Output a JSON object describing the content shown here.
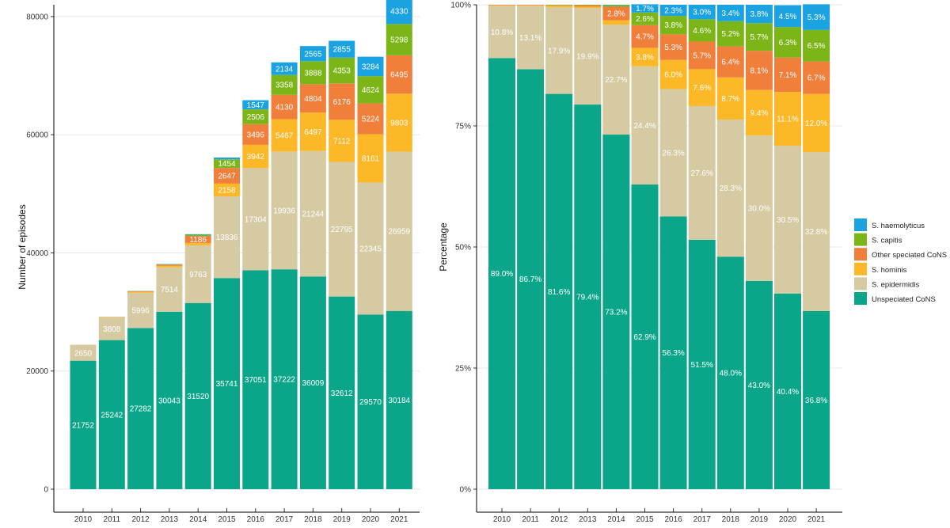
{
  "chart_data": [
    {
      "type": "stacked-bar",
      "title": "",
      "xlabel": "",
      "ylabel": "Number of episodes",
      "ylim": [
        0,
        82000
      ],
      "yticks": [
        0,
        20000,
        40000,
        60000,
        80000
      ],
      "ytick_labels": [
        "0",
        "20000",
        "40000",
        "60000",
        "80000"
      ],
      "grid": "horizontal",
      "categories": [
        "2010",
        "2011",
        "2012",
        "2013",
        "2014",
        "2015",
        "2016",
        "2017",
        "2018",
        "2019",
        "2020",
        "2021"
      ],
      "series": [
        {
          "name": "Unspeciated CoNS",
          "values": [
            21752,
            25242,
            27282,
            30043,
            31520,
            35741,
            37051,
            37222,
            36009,
            32612,
            29570,
            30184
          ],
          "labels": [
            "21752",
            "25242",
            "27282",
            "30043",
            "31520",
            "35741",
            "37051",
            "37222",
            "36009",
            "32612",
            "29570",
            "30184"
          ]
        },
        {
          "name": "S. epidermidis",
          "values": [
            2650,
            3808,
            5996,
            7514,
            9763,
            13836,
            17304,
            19936,
            21244,
            22795,
            22345,
            26959
          ],
          "labels": [
            "2650",
            "3808",
            "5996",
            "7514",
            "9763",
            "13836",
            "17304",
            "19936",
            "21244",
            "22795",
            "22345",
            "26959"
          ]
        },
        {
          "name": "S. hominis",
          "values": [
            30,
            60,
            150,
            250,
            400,
            2158,
            3942,
            5467,
            6497,
            7112,
            8161,
            9803
          ],
          "labels": [
            "",
            "",
            "",
            "",
            "",
            "2158",
            "3942",
            "5467",
            "6497",
            "7112",
            "8161",
            "9803"
          ]
        },
        {
          "name": "Other speciated CoNS",
          "values": [
            20,
            40,
            80,
            200,
            1186,
            2647,
            3496,
            4130,
            4804,
            6176,
            5224,
            6495
          ],
          "labels": [
            "",
            "",
            "",
            "",
            "1186",
            "2647",
            "3496",
            "4130",
            "4804",
            "6176",
            "5224",
            "6495"
          ]
        },
        {
          "name": "S. capitis",
          "values": [
            0,
            20,
            40,
            80,
            200,
            1454,
            2506,
            3358,
            3888,
            4353,
            4624,
            5298
          ],
          "labels": [
            "",
            "",
            "",
            "",
            "",
            "1454",
            "2506",
            "3358",
            "3888",
            "4353",
            "4624",
            "5298"
          ]
        },
        {
          "name": "S. haemolyticus",
          "values": [
            0,
            0,
            20,
            40,
            100,
            300,
            1547,
            2134,
            2565,
            2855,
            3284,
            4330
          ],
          "labels": [
            "",
            "",
            "",
            "",
            "",
            "",
            "1547",
            "2134",
            "2565",
            "2855",
            "3284",
            "4330"
          ]
        }
      ]
    },
    {
      "type": "stacked-bar",
      "title": "",
      "xlabel": "",
      "ylabel": "Percentage",
      "ylim": [
        0,
        100
      ],
      "yticks": [
        0,
        25,
        50,
        75,
        100
      ],
      "ytick_labels": [
        "0%",
        "25%",
        "50%",
        "75%",
        "100%"
      ],
      "grid": "horizontal",
      "categories": [
        "2010",
        "2011",
        "2012",
        "2013",
        "2014",
        "2015",
        "2016",
        "2017",
        "2018",
        "2019",
        "2020",
        "2021"
      ],
      "series": [
        {
          "name": "Unspeciated CoNS",
          "values": [
            89.0,
            86.7,
            81.6,
            79.4,
            73.2,
            62.9,
            56.3,
            51.5,
            48.0,
            43.0,
            40.4,
            36.8
          ],
          "labels": [
            "89.0%",
            "86.7%",
            "81.6%",
            "79.4%",
            "73.2%",
            "62.9%",
            "56.3%",
            "51.5%",
            "48.0%",
            "43.0%",
            "40.4%",
            "36.8%"
          ]
        },
        {
          "name": "S. epidermidis",
          "values": [
            10.8,
            13.1,
            17.9,
            19.9,
            22.7,
            24.4,
            26.3,
            27.6,
            28.3,
            30.0,
            30.5,
            32.8
          ],
          "labels": [
            "10.8%",
            "13.1%",
            "17.9%",
            "19.9%",
            "22.7%",
            "24.4%",
            "26.3%",
            "27.6%",
            "28.3%",
            "30.0%",
            "30.5%",
            "32.8%"
          ]
        },
        {
          "name": "S. hominis",
          "values": [
            0.1,
            0.1,
            0.3,
            0.3,
            0.9,
            3.8,
            6.0,
            7.6,
            8.7,
            9.4,
            11.1,
            12.0
          ],
          "labels": [
            "",
            "",
            "",
            "",
            "",
            "3.8%",
            "6.0%",
            "7.6%",
            "8.7%",
            "9.4%",
            "11.1%",
            "12.0%"
          ]
        },
        {
          "name": "Other speciated CoNS",
          "values": [
            0.1,
            0.1,
            0.1,
            0.3,
            2.8,
            4.7,
            5.3,
            5.7,
            6.4,
            8.1,
            7.1,
            6.7
          ],
          "labels": [
            "",
            "",
            "",
            "",
            "2.8%",
            "4.7%",
            "5.3%",
            "5.7%",
            "6.4%",
            "8.1%",
            "7.1%",
            "6.7%"
          ]
        },
        {
          "name": "S. capitis",
          "values": [
            0,
            0,
            0.1,
            0.1,
            0.3,
            2.6,
            3.8,
            4.6,
            5.2,
            5.7,
            6.3,
            6.5
          ],
          "labels": [
            "",
            "",
            "",
            "",
            "",
            "2.6%",
            "3.8%",
            "4.6%",
            "5.2%",
            "5.7%",
            "6.3%",
            "6.5%"
          ]
        },
        {
          "name": "S. haemolyticus",
          "values": [
            0,
            0,
            0,
            0,
            0.1,
            1.7,
            2.3,
            3.0,
            3.4,
            3.8,
            4.5,
            5.3
          ],
          "labels": [
            "",
            "",
            "",
            "",
            "",
            "1.7%",
            "2.3%",
            "3.0%",
            "3.4%",
            "3.8%",
            "4.5%",
            "5.3%"
          ]
        }
      ]
    }
  ],
  "legend": {
    "placement": "right",
    "items": [
      {
        "name": "S. haemolyticus",
        "color": "#1aa3e0"
      },
      {
        "name": "S. capitis",
        "color": "#7cb518"
      },
      {
        "name": "Other speciated CoNS",
        "color": "#f07f3c"
      },
      {
        "name": "S. hominis",
        "color": "#fdb827"
      },
      {
        "name": "S. epidermidis",
        "color": "#d6caa2"
      },
      {
        "name": "Unspeciated CoNS",
        "color": "#0ba68a"
      }
    ]
  }
}
